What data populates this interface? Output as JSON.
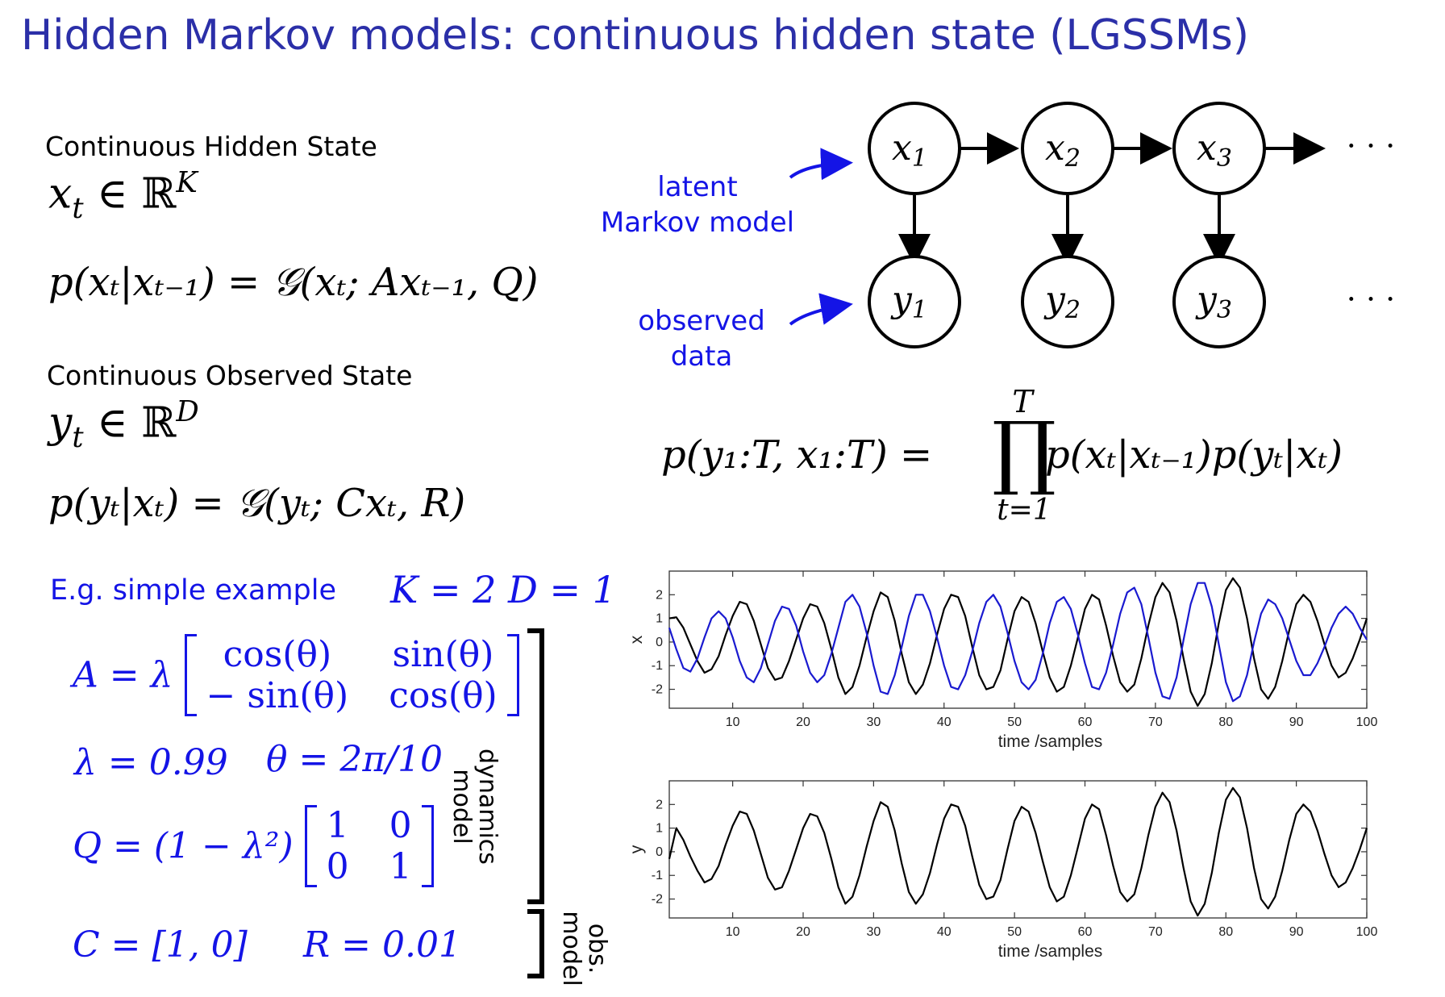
{
  "slide": {
    "title": "Hidden Markov models: continuous hidden state (LGSSMs)"
  },
  "left": {
    "hidden_heading": "Continuous Hidden State",
    "hidden_space": {
      "var": "x",
      "sub": "t",
      "in": "∈ ℝ",
      "dim": "K"
    },
    "transition": "p(xₜ|xₜ₋₁) = 𝒢(xₜ; Axₜ₋₁, Q)",
    "observed_heading": "Continuous Observed State",
    "observed_space": {
      "var": "y",
      "sub": "t",
      "in": "∈ ℝ",
      "dim": "D"
    },
    "emission": "p(yₜ|xₜ) = 𝒢(yₜ; Cxₜ, R)"
  },
  "graph": {
    "latent_label": [
      "latent",
      "Markov model"
    ],
    "observed_label": [
      "observed",
      "data"
    ],
    "x_nodes": [
      {
        "var": "x",
        "sub": "1"
      },
      {
        "var": "x",
        "sub": "2"
      },
      {
        "var": "x",
        "sub": "3"
      }
    ],
    "y_nodes": [
      {
        "var": "y",
        "sub": "1"
      },
      {
        "var": "y",
        "sub": "2"
      },
      {
        "var": "y",
        "sub": "3"
      }
    ],
    "ellipsis": "· · ·"
  },
  "joint": {
    "lhs": "p(y₁:T, x₁:T) =",
    "prod_top": "T",
    "prod_symbol": "∏",
    "prod_bottom": "t=1",
    "rhs": "p(xₜ|xₜ₋₁)p(yₜ|xₜ)"
  },
  "example": {
    "label": "E.g. simple example",
    "params": "K = 2   D = 1",
    "A_lhs": "A = λ",
    "A_matrix": [
      "cos(θ)",
      "sin(θ)",
      "− sin(θ)",
      "cos(θ)"
    ],
    "lambda": "λ = 0.99",
    "theta": "θ = 2π/10",
    "Q_lhs": "Q = (1 − λ²)",
    "Q_matrix": [
      "1",
      "0",
      "0",
      "1"
    ],
    "C": "C = [1, 0]",
    "R": "R = 0.01",
    "dynamics_label": [
      "dynamics",
      "model"
    ],
    "obs_label": [
      "obs.",
      "model"
    ]
  },
  "chart_data": [
    {
      "type": "line",
      "xlabel": "time /samples",
      "ylabel": "x",
      "xlim": [
        1,
        100
      ],
      "ylim": [
        -2.8,
        3.0
      ],
      "xticks": [
        10,
        20,
        30,
        40,
        50,
        60,
        70,
        80,
        90,
        100
      ],
      "yticks": [
        2,
        1,
        0,
        -1,
        -2
      ],
      "series": [
        {
          "color": "#000000",
          "x": [
            1,
            2,
            3,
            4,
            5,
            6,
            7,
            8,
            9,
            10,
            11,
            12,
            13,
            14,
            15,
            16,
            17,
            18,
            19,
            20,
            21,
            22,
            23,
            24,
            25,
            26,
            27,
            28,
            29,
            30,
            31,
            32,
            33,
            34,
            35,
            36,
            37,
            38,
            39,
            40,
            41,
            42,
            43,
            44,
            45,
            46,
            47,
            48,
            49,
            50,
            51,
            52,
            53,
            54,
            55,
            56,
            57,
            58,
            59,
            60,
            61,
            62,
            63,
            64,
            65,
            66,
            67,
            68,
            69,
            70,
            71,
            72,
            73,
            74,
            75,
            76,
            77,
            78,
            79,
            80,
            81,
            82,
            83,
            84,
            85,
            86,
            87,
            88,
            89,
            90,
            91,
            92,
            93,
            94,
            95,
            96,
            97,
            98,
            99,
            100
          ],
          "values": [
            1.0,
            1.05,
            0.6,
            -0.1,
            -0.8,
            -1.3,
            -1.15,
            -0.6,
            0.3,
            1.1,
            1.7,
            1.6,
            0.9,
            -0.1,
            -1.1,
            -1.6,
            -1.5,
            -0.8,
            0.1,
            1.0,
            1.6,
            1.5,
            0.8,
            -0.3,
            -1.5,
            -2.2,
            -1.9,
            -1.0,
            0.2,
            1.3,
            2.1,
            1.9,
            0.9,
            -0.5,
            -1.7,
            -2.2,
            -1.8,
            -0.9,
            0.3,
            1.4,
            2.0,
            1.9,
            1.1,
            -0.2,
            -1.4,
            -2.0,
            -1.9,
            -1.2,
            0.1,
            1.3,
            1.9,
            1.7,
            0.8,
            -0.4,
            -1.5,
            -2.1,
            -1.9,
            -1.0,
            0.2,
            1.4,
            2.0,
            1.8,
            0.7,
            -0.6,
            -1.7,
            -2.1,
            -1.8,
            -0.7,
            0.7,
            1.9,
            2.5,
            2.1,
            0.9,
            -0.7,
            -2.1,
            -2.7,
            -2.2,
            -0.9,
            0.8,
            2.2,
            2.7,
            2.3,
            1.0,
            -0.7,
            -2.0,
            -2.4,
            -1.9,
            -0.8,
            0.5,
            1.6,
            2.0,
            1.7,
            0.9,
            -0.1,
            -1.0,
            -1.5,
            -1.3,
            -0.7,
            0.1,
            1.0
          ]
        },
        {
          "color": "#1a1ad0",
          "x": [
            1,
            2,
            3,
            4,
            5,
            6,
            7,
            8,
            9,
            10,
            11,
            12,
            13,
            14,
            15,
            16,
            17,
            18,
            19,
            20,
            21,
            22,
            23,
            24,
            25,
            26,
            27,
            28,
            29,
            30,
            31,
            32,
            33,
            34,
            35,
            36,
            37,
            38,
            39,
            40,
            41,
            42,
            43,
            44,
            45,
            46,
            47,
            48,
            49,
            50,
            51,
            52,
            53,
            54,
            55,
            56,
            57,
            58,
            59,
            60,
            61,
            62,
            63,
            64,
            65,
            66,
            67,
            68,
            69,
            70,
            71,
            72,
            73,
            74,
            75,
            76,
            77,
            78,
            79,
            80,
            81,
            82,
            83,
            84,
            85,
            86,
            87,
            88,
            89,
            90,
            91,
            92,
            93,
            94,
            95,
            96,
            97,
            98,
            99,
            100
          ],
          "values": [
            0.6,
            -0.3,
            -1.1,
            -1.25,
            -0.7,
            0.2,
            1.0,
            1.3,
            1.0,
            0.2,
            -0.8,
            -1.5,
            -1.7,
            -1.1,
            -0.1,
            0.9,
            1.5,
            1.4,
            0.7,
            -0.4,
            -1.3,
            -1.7,
            -1.4,
            -0.5,
            0.6,
            1.7,
            2.0,
            1.5,
            0.4,
            -1.0,
            -2.1,
            -2.2,
            -1.4,
            -0.2,
            1.1,
            2.0,
            2.0,
            1.3,
            0.2,
            -1.0,
            -1.9,
            -2.0,
            -1.4,
            -0.4,
            0.8,
            1.7,
            2.0,
            1.5,
            0.4,
            -0.8,
            -1.7,
            -2.0,
            -1.6,
            -0.5,
            0.8,
            1.7,
            1.9,
            1.4,
            0.3,
            -0.9,
            -1.9,
            -2.0,
            -1.3,
            -0.1,
            1.2,
            2.1,
            2.3,
            1.6,
            0.2,
            -1.3,
            -2.3,
            -2.4,
            -1.5,
            0.1,
            1.6,
            2.5,
            2.5,
            1.5,
            -0.1,
            -1.7,
            -2.5,
            -2.3,
            -1.4,
            0.0,
            1.2,
            1.8,
            1.6,
            1.0,
            0.1,
            -0.8,
            -1.4,
            -1.4,
            -0.9,
            -0.2,
            0.6,
            1.2,
            1.5,
            1.2,
            0.6,
            0.1
          ]
        }
      ]
    },
    {
      "type": "line",
      "xlabel": "time /samples",
      "ylabel": "y",
      "xlim": [
        1,
        100
      ],
      "ylim": [
        -2.8,
        3.0
      ],
      "xticks": [
        10,
        20,
        30,
        40,
        50,
        60,
        70,
        80,
        90,
        100
      ],
      "yticks": [
        2,
        1,
        0,
        -1,
        -2
      ],
      "series": [
        {
          "color": "#000000",
          "x": [
            1,
            2,
            3,
            4,
            5,
            6,
            7,
            8,
            9,
            10,
            11,
            12,
            13,
            14,
            15,
            16,
            17,
            18,
            19,
            20,
            21,
            22,
            23,
            24,
            25,
            26,
            27,
            28,
            29,
            30,
            31,
            32,
            33,
            34,
            35,
            36,
            37,
            38,
            39,
            40,
            41,
            42,
            43,
            44,
            45,
            46,
            47,
            48,
            49,
            50,
            51,
            52,
            53,
            54,
            55,
            56,
            57,
            58,
            59,
            60,
            61,
            62,
            63,
            64,
            65,
            66,
            67,
            68,
            69,
            70,
            71,
            72,
            73,
            74,
            75,
            76,
            77,
            78,
            79,
            80,
            81,
            82,
            83,
            84,
            85,
            86,
            87,
            88,
            89,
            90,
            91,
            92,
            93,
            94,
            95,
            96,
            97,
            98,
            99,
            100
          ],
          "values": [
            -0.3,
            1.0,
            0.5,
            -0.2,
            -0.8,
            -1.3,
            -1.15,
            -0.6,
            0.3,
            1.1,
            1.7,
            1.6,
            0.9,
            -0.1,
            -1.1,
            -1.6,
            -1.5,
            -0.8,
            0.1,
            1.0,
            1.6,
            1.5,
            0.8,
            -0.3,
            -1.5,
            -2.2,
            -1.9,
            -1.0,
            0.2,
            1.3,
            2.1,
            1.9,
            0.9,
            -0.5,
            -1.7,
            -2.2,
            -1.8,
            -0.9,
            0.3,
            1.4,
            2.0,
            1.9,
            1.1,
            -0.2,
            -1.4,
            -2.0,
            -1.9,
            -1.2,
            0.1,
            1.3,
            1.9,
            1.7,
            0.8,
            -0.4,
            -1.5,
            -2.1,
            -1.9,
            -1.0,
            0.2,
            1.4,
            2.0,
            1.8,
            0.7,
            -0.6,
            -1.7,
            -2.1,
            -1.8,
            -0.7,
            0.7,
            1.9,
            2.5,
            2.1,
            0.9,
            -0.7,
            -2.1,
            -2.7,
            -2.2,
            -0.9,
            0.8,
            2.2,
            2.7,
            2.3,
            1.0,
            -0.7,
            -2.0,
            -2.4,
            -1.9,
            -0.8,
            0.5,
            1.6,
            2.0,
            1.7,
            0.9,
            -0.1,
            -1.0,
            -1.5,
            -1.3,
            -0.7,
            0.1,
            1.0
          ]
        }
      ]
    }
  ]
}
